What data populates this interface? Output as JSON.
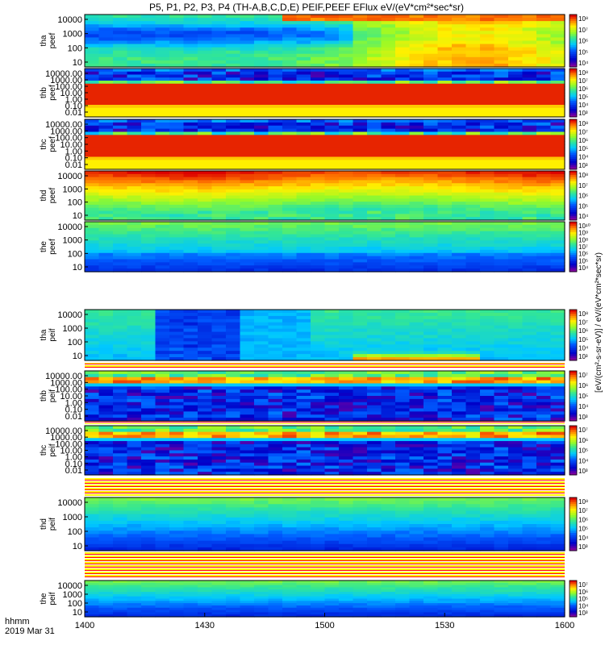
{
  "title": "P5, P1, P2, P3, P4 (TH-A,B,C,D,E) PEIF,PEEF EFlux eV/(eV*cm²*sec*sr)",
  "chart_data": {
    "type": "heatmap",
    "xlabel": "hhmm",
    "date_label": "2019 Mar 31",
    "x_ticks": [
      "1400",
      "1430",
      "1500",
      "1530",
      "1600"
    ],
    "xlim": [
      "1400",
      "1600"
    ],
    "colorbar_label": "[eV/(cm²-s-sr-eV)] / eV/(eV*cm²*sec*sr)",
    "panels": [
      {
        "id": "tha_peef",
        "ylabel": [
          "tha",
          "peef"
        ],
        "y_ticks": [
          "10000",
          "1000",
          "100",
          "10"
        ],
        "cbar_ticks": [
          "10⁸",
          "10⁷",
          "10⁶",
          "10⁵",
          "10⁴"
        ],
        "profile": "a_e"
      },
      {
        "id": "thb_peef",
        "ylabel": [
          "thb",
          "peef"
        ],
        "y_ticks": [
          "10000.00",
          "1000.00",
          "100.00",
          "10.00",
          "1.00",
          "0.10",
          "0.01"
        ],
        "cbar_ticks": [
          "10⁸",
          "10⁷",
          "10⁶",
          "10⁵",
          "10⁴",
          "10³"
        ],
        "profile": "bc_e"
      },
      {
        "id": "thc_peef",
        "ylabel": [
          "thc",
          "peef"
        ],
        "y_ticks": [
          "10000.00",
          "1000.00",
          "100.00",
          "10.00",
          "1.00",
          "0.10",
          "0.01"
        ],
        "cbar_ticks": [
          "10⁸",
          "10⁷",
          "10⁶",
          "10⁵",
          "10⁴",
          "10³"
        ],
        "profile": "bc_e"
      },
      {
        "id": "thd_peef",
        "ylabel": [
          "thd",
          "peef"
        ],
        "y_ticks": [
          "10000",
          "1000",
          "100",
          "10"
        ],
        "cbar_ticks": [
          "10⁸",
          "10⁷",
          "10⁶",
          "10⁵",
          "10⁴"
        ],
        "profile": "d_e"
      },
      {
        "id": "the_peef",
        "ylabel": [
          "the",
          "peef"
        ],
        "y_ticks": [
          "10000",
          "1000",
          "100",
          "10"
        ],
        "cbar_ticks": [
          "10¹⁰",
          "10⁹",
          "10⁸",
          "10⁷",
          "10⁶",
          "10⁵",
          "10⁴"
        ],
        "profile": "e_e"
      },
      {
        "id": "tha_peif",
        "ylabel": [
          "tha",
          "peif"
        ],
        "y_ticks": [
          "10000",
          "1000",
          "100",
          "10"
        ],
        "cbar_ticks": [
          "10⁸",
          "10⁷",
          "10⁶",
          "10⁵",
          "10⁴",
          "10³"
        ],
        "profile": "a_i"
      },
      {
        "id": "thb_peif",
        "ylabel": [
          "thb",
          "peif"
        ],
        "y_ticks": [
          "10000.00",
          "1000.00",
          "100.00",
          "10.00",
          "1.00",
          "0.10",
          "0.01"
        ],
        "cbar_ticks": [
          "10⁷",
          "10⁶",
          "10⁵",
          "10⁴",
          "10³"
        ],
        "profile": "bc_i"
      },
      {
        "id": "thc_peif",
        "ylabel": [
          "thc",
          "peif"
        ],
        "y_ticks": [
          "10000.00",
          "1000.00",
          "100.00",
          "10.00",
          "1.00",
          "0.10",
          "0.01"
        ],
        "cbar_ticks": [
          "10⁷",
          "10⁶",
          "10⁵",
          "10⁴",
          "10³"
        ],
        "profile": "bc_i"
      },
      {
        "id": "thd_peif",
        "ylabel": [
          "thd",
          "peif"
        ],
        "y_ticks": [
          "10000",
          "1000",
          "100",
          "10"
        ],
        "cbar_ticks": [
          "10⁸",
          "10⁷",
          "10⁶",
          "10⁵",
          "10⁴",
          "10³"
        ],
        "profile": "de_i"
      },
      {
        "id": "the_peif",
        "ylabel": [
          "the",
          "peif"
        ],
        "y_ticks": [
          "10000",
          "1000",
          "100",
          "10"
        ],
        "cbar_ticks": [
          "10⁷",
          "10⁶",
          "10⁵",
          "10⁴",
          "10³"
        ],
        "profile": "de_i"
      }
    ]
  }
}
